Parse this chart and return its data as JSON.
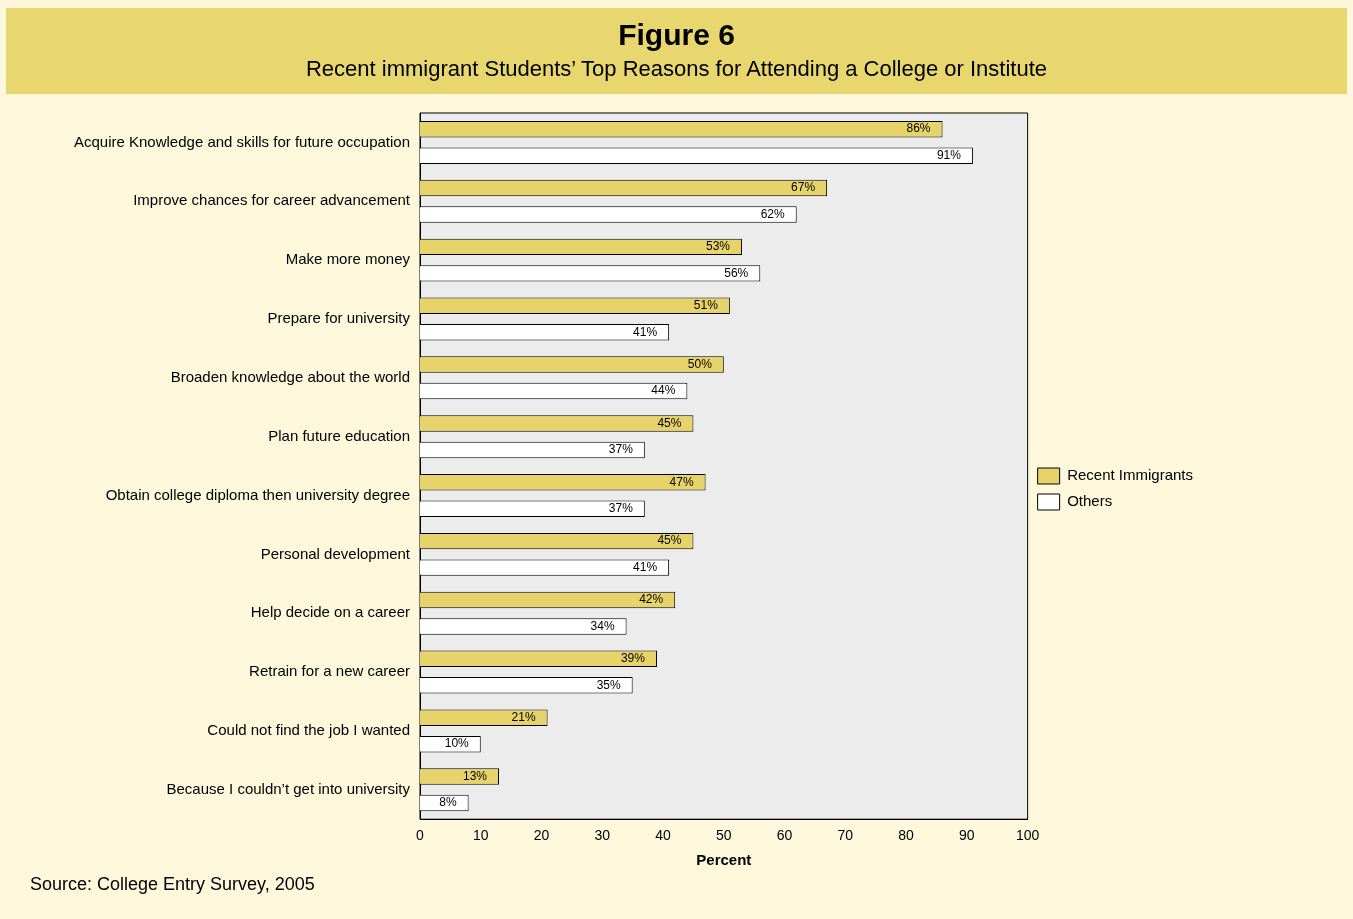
{
  "chart_data": {
    "type": "bar",
    "orientation": "horizontal",
    "title": "Figure 6",
    "subtitle": "Recent immigrant Students’ Top Reasons for Attending a College or Institute",
    "xlabel": "Percent",
    "categories": [
      "Acquire Knowledge and skills for future occupation",
      "Improve chances for career advancement",
      "Make more money",
      "Prepare for university",
      "Broaden knowledge about the world",
      "Plan future education",
      "Obtain college diploma then university degree",
      "Personal development",
      "Help decide on a career",
      "Retrain for a new career",
      "Could not find the job I wanted",
      "Because I couldn’t get into university"
    ],
    "series": [
      {
        "name": "Recent Immigrants",
        "color": "#e6d46a",
        "values": [
          86,
          67,
          53,
          51,
          50,
          45,
          47,
          45,
          42,
          39,
          21,
          13
        ],
        "value_labels": [
          "86%",
          "67%",
          "53%",
          "51%",
          "50%",
          "45%",
          "47%",
          "45%",
          "42%",
          "39%",
          "21%",
          "13%"
        ]
      },
      {
        "name": "Others",
        "color": "#ffffff",
        "values": [
          91,
          62,
          56,
          41,
          44,
          37,
          37,
          41,
          34,
          35,
          10,
          8
        ],
        "value_labels": [
          "91%",
          "62%",
          "56%",
          "41%",
          "44%",
          "37%",
          "37%",
          "41%",
          "34%",
          "35%",
          "10%",
          "8%"
        ]
      }
    ],
    "xlim": [
      0,
      100
    ],
    "xticks": [
      0,
      10,
      20,
      30,
      40,
      50,
      60,
      70,
      80,
      90,
      100
    ],
    "grid": false,
    "legend": "right",
    "annotations": [
      "Source: College Entry Survey, 2005"
    ]
  }
}
